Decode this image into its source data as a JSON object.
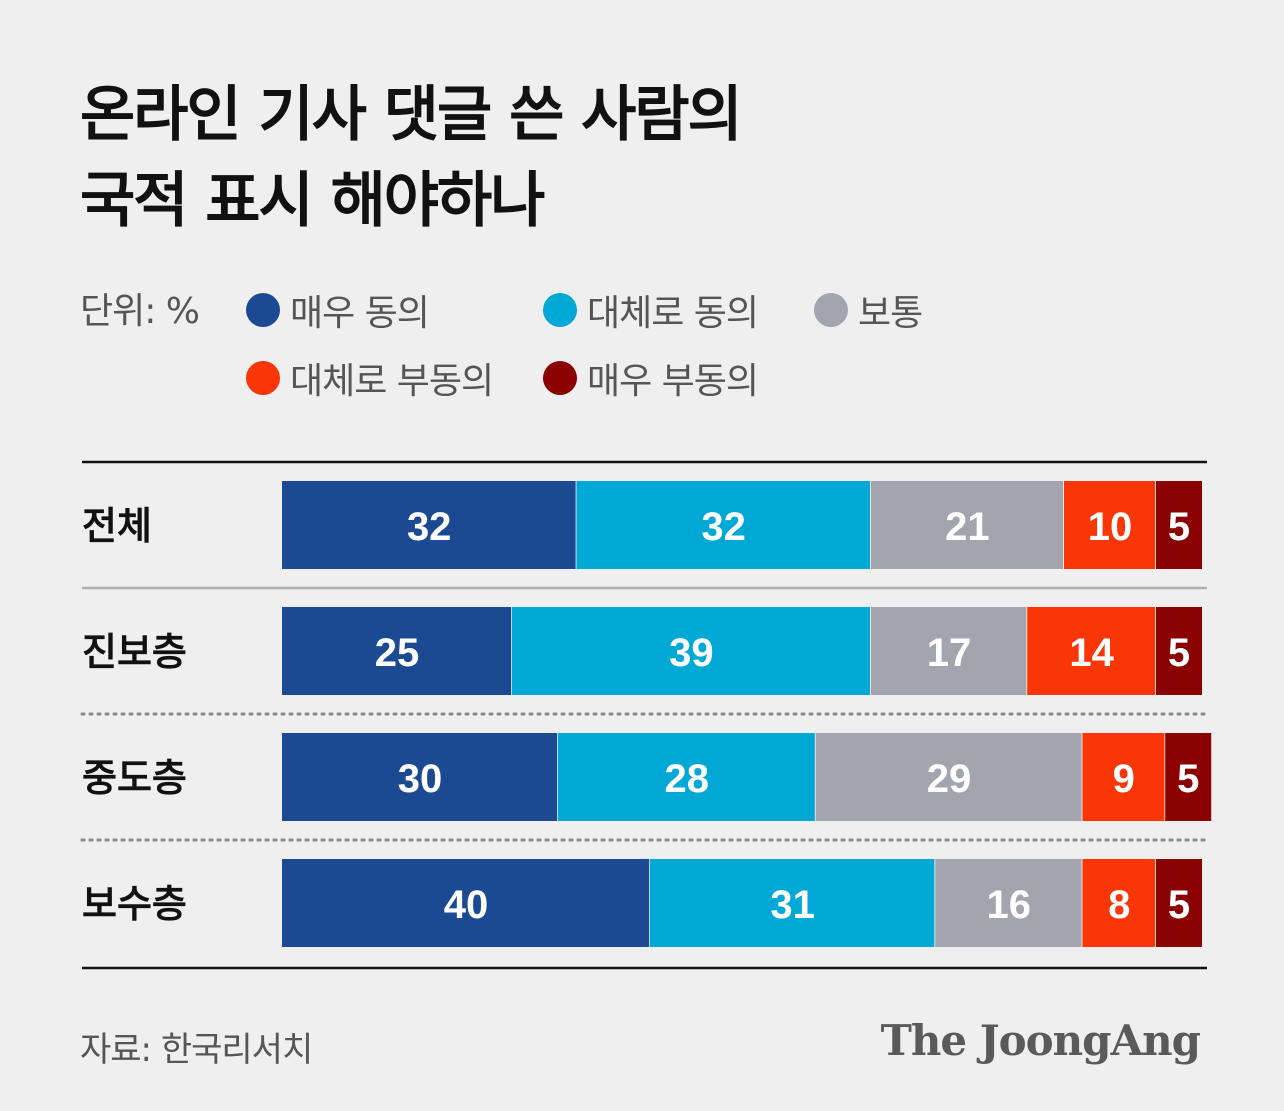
{
  "title": {
    "line1": "온라인 기사 댓글 쓴 사람의",
    "line2": "국적 표시 해야하나"
  },
  "unit_label": "단위: %",
  "legend": [
    {
      "label": "매우 동의",
      "color": "#1b4a93"
    },
    {
      "label": "대체로 동의",
      "color": "#00a8d6"
    },
    {
      "label": "보통",
      "color": "#a3a4ae"
    },
    {
      "label": "대체로 부동의",
      "color": "#fb3606"
    },
    {
      "label": "매우 부동의",
      "color": "#8b0000"
    }
  ],
  "chart_data": {
    "type": "bar",
    "orientation": "horizontal",
    "stacked": true,
    "categories": [
      "전체",
      "진보층",
      "중도층",
      "보수층"
    ],
    "series": [
      {
        "name": "매우 동의",
        "color": "#1b4a93",
        "values": [
          32,
          25,
          30,
          40
        ]
      },
      {
        "name": "대체로 동의",
        "color": "#00a8d6",
        "values": [
          32,
          39,
          28,
          31
        ]
      },
      {
        "name": "보통",
        "color": "#a3a4ae",
        "values": [
          21,
          17,
          29,
          16
        ]
      },
      {
        "name": "대체로 부동의",
        "color": "#fb3606",
        "values": [
          10,
          14,
          9,
          8
        ]
      },
      {
        "name": "매우 부동의",
        "color": "#8b0000",
        "values": [
          5,
          5,
          5,
          5
        ]
      }
    ],
    "unit": "%",
    "xlim": [
      0,
      100
    ],
    "legend_position": "top",
    "grid": false
  },
  "footer": {
    "source": "자료: 한국리서치",
    "brand": "The JoongAng"
  }
}
